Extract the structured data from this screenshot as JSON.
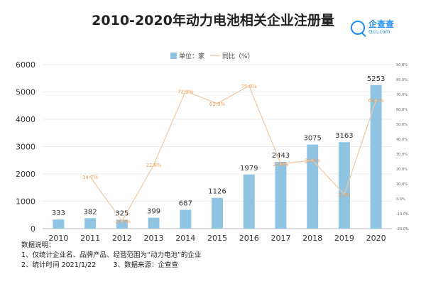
{
  "title": "2010-2020年动力电池相关企业注册量",
  "logo": {
    "name": "企查查",
    "url": "Qcc.com"
  },
  "legend": {
    "bar": "单位：家",
    "line": "同比（%）"
  },
  "colors": {
    "bar": "#8fc5e3",
    "line": "#f2c79b",
    "line_label": "#f0a060"
  },
  "chart_data": {
    "type": "bar",
    "title": "2010-2020年动力电池相关企业注册量",
    "categories": [
      "2010",
      "2011",
      "2012",
      "2013",
      "2014",
      "2015",
      "2016",
      "2017",
      "2018",
      "2019",
      "2020"
    ],
    "series": [
      {
        "name": "单位：家",
        "type": "bar",
        "axis": "left",
        "values": [
          333,
          382,
          325,
          399,
          687,
          1126,
          1979,
          2443,
          3075,
          3163,
          5253
        ],
        "labels": [
          "333",
          "382",
          "325",
          "399",
          "687",
          "1126",
          "1979",
          "2443",
          "3075",
          "3163",
          "5253"
        ]
      },
      {
        "name": "同比（%）",
        "type": "line",
        "axis": "right",
        "values": [
          null,
          14.7,
          -14.9,
          22.8,
          72.2,
          63.9,
          75.8,
          23.4,
          25.9,
          2.9,
          66.1
        ],
        "labels": [
          "",
          "14.7%",
          "-14.9%",
          "22.8%",
          "72.2%",
          "63.9%",
          "75.8%",
          "23.4%",
          "25.9%",
          "2.9%",
          "66.1%"
        ]
      }
    ],
    "ylim": [
      0,
      6000
    ],
    "yticks": [
      "0",
      "1000",
      "2000",
      "3000",
      "4000",
      "5000",
      "6000"
    ],
    "y2lim": [
      -20,
      90
    ],
    "y2ticks": [
      "-20.0%",
      "-10.0%",
      "0.0%",
      "10.0%",
      "20.0%",
      "30.0%",
      "40.0%",
      "50.0%",
      "60.0%",
      "70.0%",
      "80.0%",
      "90.0%"
    ],
    "grid": true,
    "legend_position": "top"
  },
  "notes": [
    "数据说明：",
    "1、仅统计企业名、品牌产品、经营范围为“动力电池”的企业",
    "2、统计时间 2021/1/22        3、数据来源：企查查"
  ]
}
